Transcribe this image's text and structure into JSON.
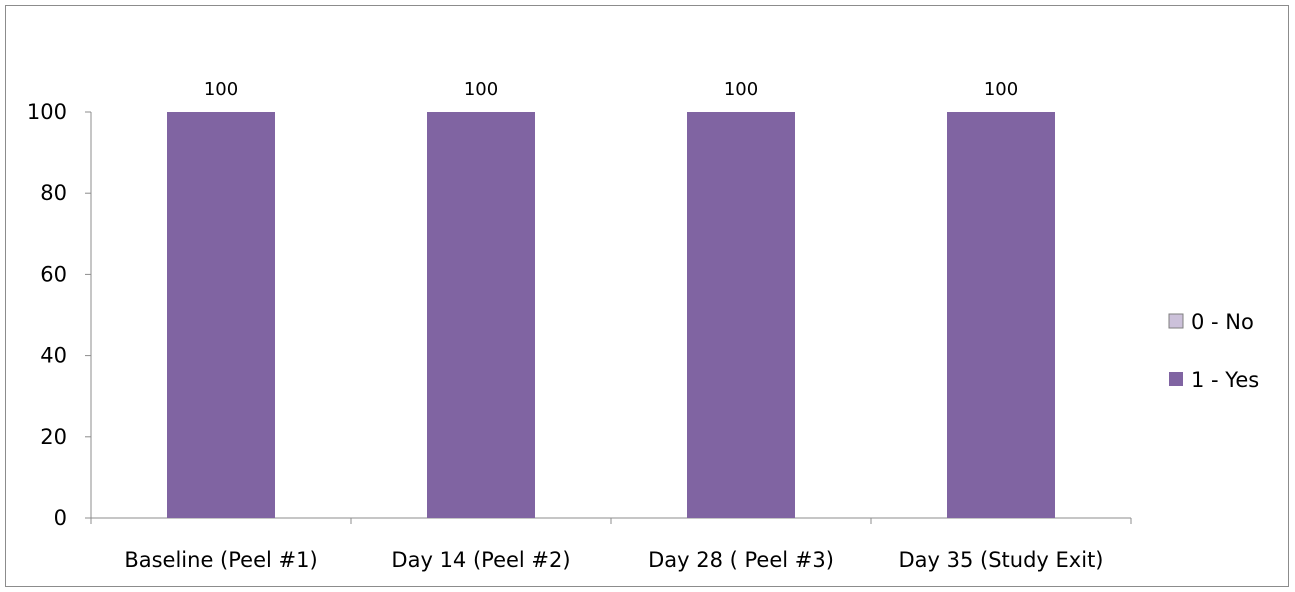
{
  "chart_data": {
    "type": "bar",
    "categories": [
      "Baseline (Peel #1)",
      "Day 14 (Peel #2)",
      "Day 28 ( Peel #3)",
      "Day 35 (Study Exit)"
    ],
    "series": [
      {
        "name": "0 - No",
        "values": [
          0,
          0,
          0,
          0
        ],
        "color": "#ccc1da"
      },
      {
        "name": "1 - Yes",
        "values": [
          100,
          100,
          100,
          100
        ],
        "color": "#8064a2"
      }
    ],
    "data_labels": [
      "100",
      "100",
      "100",
      "100"
    ],
    "y_ticks": [
      "0",
      "20",
      "40",
      "60",
      "80",
      "100"
    ],
    "ylim": [
      0,
      100
    ],
    "title": "",
    "xlabel": "",
    "ylabel": "",
    "grid": false,
    "legend_position": "right"
  }
}
